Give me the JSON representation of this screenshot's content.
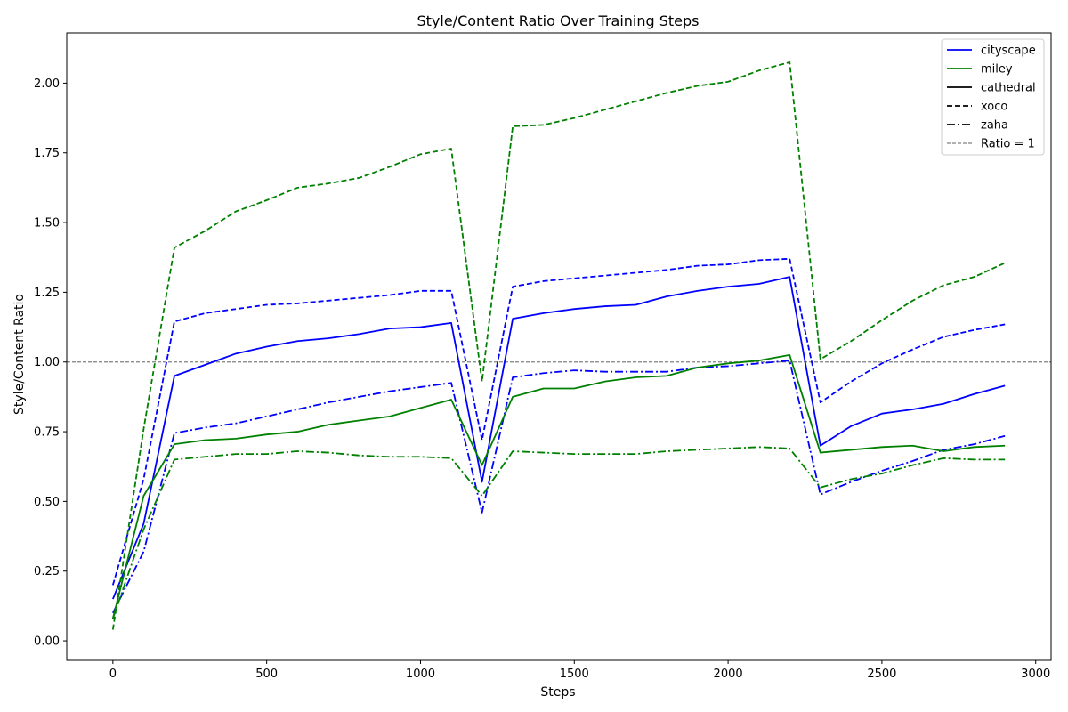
{
  "chart_data": {
    "type": "line",
    "title": "Style/Content Ratio Over Training Steps",
    "xlabel": "Steps",
    "ylabel": "Style/Content Ratio",
    "xlim": [
      -150,
      3050
    ],
    "ylim": [
      -0.07,
      2.18
    ],
    "xticks": [
      0,
      500,
      1000,
      1500,
      2000,
      2500,
      3000
    ],
    "yticks": [
      0.0,
      0.25,
      0.5,
      0.75,
      1.0,
      1.25,
      1.5,
      1.75,
      2.0
    ],
    "ytick_labels": [
      "0.00",
      "0.25",
      "0.50",
      "0.75",
      "1.00",
      "1.25",
      "1.50",
      "1.75",
      "2.00"
    ],
    "grid": false,
    "legend_position": "top-right",
    "x": [
      0,
      100,
      200,
      300,
      400,
      500,
      600,
      700,
      800,
      900,
      1000,
      1100,
      1200,
      1300,
      1400,
      1500,
      1600,
      1700,
      1800,
      1900,
      2000,
      2100,
      2200,
      2300,
      2400,
      2500,
      2600,
      2700,
      2800,
      2900
    ],
    "series": [
      {
        "style_key": "cityscape",
        "content_key": "cathedral",
        "color": "#0000ff",
        "dash": "solid",
        "values": [
          0.15,
          0.42,
          0.95,
          0.99,
          1.03,
          1.055,
          1.075,
          1.085,
          1.1,
          1.12,
          1.125,
          1.14,
          0.57,
          1.155,
          1.175,
          1.19,
          1.2,
          1.205,
          1.235,
          1.255,
          1.27,
          1.28,
          1.305,
          0.7,
          0.77,
          0.815,
          0.83,
          0.85,
          0.885,
          0.915
        ]
      },
      {
        "style_key": "cityscape",
        "content_key": "xoco",
        "color": "#0000ff",
        "dash": "dashed",
        "values": [
          0.2,
          0.58,
          1.145,
          1.175,
          1.19,
          1.205,
          1.21,
          1.22,
          1.23,
          1.24,
          1.255,
          1.255,
          0.72,
          1.27,
          1.29,
          1.3,
          1.31,
          1.32,
          1.33,
          1.345,
          1.35,
          1.365,
          1.37,
          0.855,
          0.93,
          0.995,
          1.045,
          1.09,
          1.115,
          1.135
        ]
      },
      {
        "style_key": "cityscape",
        "content_key": "zaha",
        "color": "#0000ff",
        "dash": "dashdot",
        "values": [
          0.1,
          0.32,
          0.745,
          0.765,
          0.78,
          0.805,
          0.83,
          0.855,
          0.875,
          0.895,
          0.91,
          0.925,
          0.46,
          0.945,
          0.96,
          0.97,
          0.965,
          0.965,
          0.965,
          0.98,
          0.985,
          0.995,
          1.005,
          0.525,
          0.57,
          0.61,
          0.645,
          0.685,
          0.705,
          0.735
        ]
      },
      {
        "style_key": "miley",
        "content_key": "cathedral",
        "color": "#008000",
        "dash": "solid",
        "values": [
          0.08,
          0.52,
          0.705,
          0.72,
          0.725,
          0.74,
          0.75,
          0.775,
          0.79,
          0.805,
          0.835,
          0.865,
          0.63,
          0.875,
          0.905,
          0.905,
          0.93,
          0.945,
          0.95,
          0.98,
          0.995,
          1.005,
          1.025,
          0.675,
          0.685,
          0.695,
          0.7,
          0.68,
          0.695,
          0.7
        ]
      },
      {
        "style_key": "miley",
        "content_key": "xoco",
        "color": "#008000",
        "dash": "dashed",
        "values": [
          0.04,
          0.76,
          1.41,
          1.47,
          1.54,
          1.58,
          1.625,
          1.64,
          1.66,
          1.7,
          1.745,
          1.765,
          0.93,
          1.845,
          1.85,
          1.875,
          1.905,
          1.935,
          1.965,
          1.99,
          2.005,
          2.045,
          2.075,
          1.01,
          1.075,
          1.15,
          1.22,
          1.275,
          1.305,
          1.355
        ]
      },
      {
        "style_key": "miley",
        "content_key": "zaha",
        "color": "#008000",
        "dash": "dashdot",
        "values": [
          0.08,
          0.4,
          0.65,
          0.66,
          0.67,
          0.67,
          0.68,
          0.675,
          0.665,
          0.66,
          0.66,
          0.655,
          0.52,
          0.68,
          0.675,
          0.67,
          0.67,
          0.67,
          0.68,
          0.685,
          0.69,
          0.695,
          0.69,
          0.55,
          0.58,
          0.6,
          0.63,
          0.655,
          0.65,
          0.65
        ]
      }
    ],
    "reference_line": {
      "y": 1.0,
      "label": "Ratio = 1",
      "color": "#808080"
    },
    "legend": [
      {
        "label": "cityscape",
        "color": "#0000ff",
        "dash": "solid"
      },
      {
        "label": "miley",
        "color": "#008000",
        "dash": "solid"
      },
      {
        "label": "cathedral",
        "color": "#000000",
        "dash": "solid"
      },
      {
        "label": "xoco",
        "color": "#000000",
        "dash": "dashed"
      },
      {
        "label": "zaha",
        "color": "#000000",
        "dash": "dashdot"
      },
      {
        "label": "Ratio = 1",
        "color": "#808080",
        "dash": "thin-dashed"
      }
    ]
  }
}
